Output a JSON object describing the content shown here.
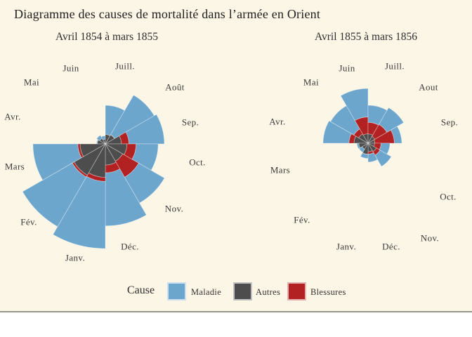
{
  "title": "Diagramme des causes de mortalité dans l’armée en Orient",
  "page": {
    "background": "#fcf6e6",
    "bottom_border_color": "#98978d"
  },
  "legend": {
    "label": "Cause",
    "position": "bottom",
    "items": [
      {
        "label": "Maladie",
        "color": "#6CA6CD"
      },
      {
        "label": "Autres",
        "color": "#4D4D4D"
      },
      {
        "label": "Blessures",
        "color": "#B22222"
      }
    ]
  },
  "chart_data": [
    {
      "type": "polar_area",
      "title": "Avril 1854 à mars 1855",
      "angle_layout": "12 sectors of 30°, clockwise, Juill. at top, Avr. at upper-left",
      "radial_scale": "sqrt (area proportional to value), stacked Autres -> Blessures -> Maladie",
      "categories": [
        "Avr.",
        "Mai",
        "Juin",
        "Juill.",
        "Août",
        "Sep.",
        "Oct.",
        "Nov.",
        "Déc.",
        "Janv.",
        "Fév.",
        "Mars"
      ],
      "series": [
        {
          "name": "Maladie",
          "values": [
            1.4,
            6.2,
            4.7,
            150.0,
            328.5,
            312.2,
            197.0,
            340.6,
            631.5,
            1022.8,
            822.8,
            480.3
          ]
        },
        {
          "name": "Autres",
          "values": [
            7.0,
            4.6,
            2.5,
            9.6,
            11.9,
            27.7,
            50.1,
            42.8,
            48.0,
            120.0,
            140.1,
            68.6
          ]
        },
        {
          "name": "Blessures",
          "values": [
            0.0,
            0.0,
            0.0,
            0.0,
            0.4,
            32.1,
            51.7,
            115.8,
            41.7,
            30.7,
            16.3,
            12.8
          ]
        }
      ]
    },
    {
      "type": "polar_area",
      "title": "Avril 1855 à mars 1856",
      "angle_layout": "12 sectors of 30°, clockwise, Juill. at top, Avr. at upper-left",
      "radial_scale": "sqrt (area proportional to value), stacked Autres -> Blessures -> Maladie",
      "categories": [
        "Avr.",
        "Mai",
        "Juin",
        "Juill.",
        "Aout",
        "Sep.",
        "Oct.",
        "Nov.",
        "Déc.",
        "Janv.",
        "Fév.",
        "Mars"
      ],
      "series": [
        {
          "name": "Maladie",
          "values": [
            177.5,
            171.8,
            247.6,
            107.5,
            129.9,
            47.5,
            32.8,
            56.4,
            25.3,
            11.4,
            6.6,
            3.9
          ]
        },
        {
          "name": "Autres",
          "values": [
            21.2,
            12.5,
            9.6,
            9.3,
            6.7,
            5.0,
            4.6,
            10.1,
            7.8,
            13.0,
            5.2,
            9.1
          ]
        },
        {
          "name": "Blessures",
          "values": [
            17.9,
            16.6,
            64.5,
            37.7,
            44.1,
            69.4,
            13.6,
            10.5,
            5.0,
            0.5,
            0.0,
            0.0
          ]
        }
      ]
    }
  ]
}
